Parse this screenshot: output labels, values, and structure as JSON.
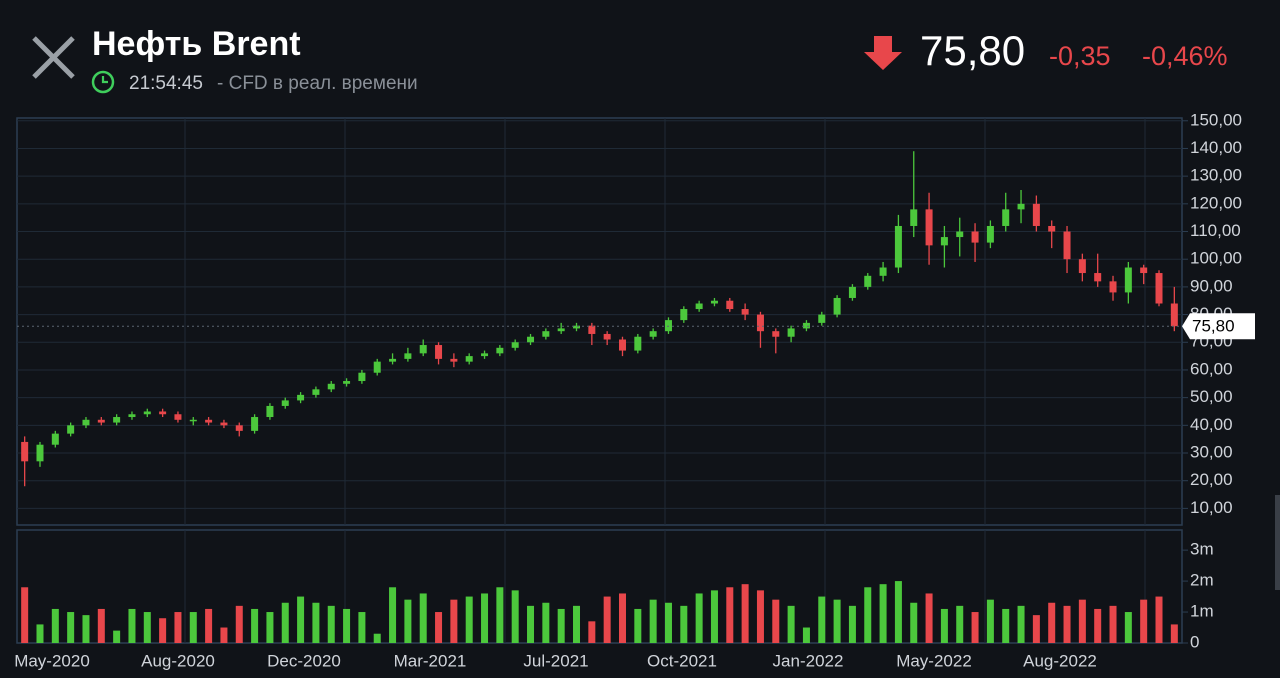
{
  "header": {
    "title": "Нефть Brent",
    "time": "21:54:45",
    "subtitle": "- CFD в реал. времени",
    "price": "75,80",
    "change": "-0,35",
    "change_pct": "-0,46%"
  },
  "chart_data": {
    "type": "candlestick",
    "open": [
      34,
      27,
      33,
      37,
      40,
      42,
      41,
      43,
      44,
      45,
      44,
      42,
      42,
      41,
      40,
      38,
      43,
      47,
      49,
      51,
      53,
      55,
      56,
      59,
      63,
      64,
      66,
      69,
      64,
      63,
      65,
      66,
      68,
      70,
      72,
      74,
      75,
      76,
      73,
      71,
      67,
      72,
      74,
      78,
      82,
      84,
      85,
      82,
      80,
      74,
      72,
      75,
      77,
      80,
      86,
      90,
      94,
      97,
      112,
      118,
      105,
      108,
      110,
      106,
      112,
      118,
      120,
      112,
      110,
      100,
      95,
      92,
      88,
      97,
      95,
      84
    ],
    "high": [
      36,
      34,
      38,
      41,
      43,
      43,
      44,
      45,
      46,
      46,
      45,
      43,
      43,
      42,
      41,
      44,
      48,
      50,
      52,
      54,
      56,
      57,
      60,
      64,
      66,
      68,
      71,
      70,
      66,
      66,
      67,
      69,
      71,
      73,
      75,
      77,
      77,
      77,
      74,
      72,
      73,
      75,
      79,
      83,
      85,
      86,
      86,
      84,
      81,
      75,
      76,
      78,
      81,
      87,
      91,
      95,
      99,
      116,
      139,
      124,
      112,
      115,
      113,
      114,
      124,
      125,
      123,
      114,
      112,
      102,
      102,
      94,
      99,
      98,
      96,
      90
    ],
    "low": [
      18,
      25,
      32,
      36,
      39,
      40,
      40,
      42,
      43,
      43,
      41,
      40,
      40,
      39,
      36,
      37,
      42,
      46,
      48,
      50,
      52,
      54,
      55,
      58,
      62,
      63,
      65,
      62,
      61,
      62,
      64,
      65,
      67,
      69,
      71,
      73,
      74,
      69,
      69,
      65,
      66,
      71,
      73,
      77,
      81,
      83,
      81,
      78,
      68,
      66,
      70,
      74,
      76,
      79,
      85,
      89,
      92,
      95,
      108,
      98,
      97,
      101,
      99,
      104,
      110,
      113,
      110,
      104,
      95,
      92,
      90,
      85,
      84,
      91,
      83,
      74
    ],
    "close": [
      27,
      33,
      37,
      40,
      42,
      41,
      43,
      44,
      45,
      44,
      42,
      42,
      41,
      40,
      38,
      43,
      47,
      49,
      51,
      53,
      55,
      56,
      59,
      63,
      64,
      66,
      69,
      64,
      63,
      65,
      66,
      68,
      70,
      72,
      74,
      75,
      76,
      73,
      71,
      67,
      72,
      74,
      78,
      82,
      84,
      85,
      82,
      80,
      74,
      72,
      75,
      77,
      80,
      86,
      90,
      94,
      97,
      112,
      118,
      105,
      108,
      110,
      106,
      112,
      118,
      120,
      112,
      110,
      100,
      95,
      92,
      88,
      97,
      95,
      84,
      75.8
    ],
    "up_color": "#4cc83c",
    "down_color": "#e8474b",
    "ylim": [
      4,
      151
    ],
    "yticks": [
      {
        "value": 10,
        "label": "10,00"
      },
      {
        "value": 20,
        "label": "20,00"
      },
      {
        "value": 30,
        "label": "30,00"
      },
      {
        "value": 40,
        "label": "40,00"
      },
      {
        "value": 50,
        "label": "50,00"
      },
      {
        "value": 60,
        "label": "60,00"
      },
      {
        "value": 70,
        "label": "70,00"
      },
      {
        "value": 80,
        "label": "80,00"
      },
      {
        "value": 90,
        "label": "90,00"
      },
      {
        "value": 100,
        "label": "100,00"
      },
      {
        "value": 110,
        "label": "110,00"
      },
      {
        "value": 120,
        "label": "120,00"
      },
      {
        "value": 130,
        "label": "130,00"
      },
      {
        "value": 140,
        "label": "140,00"
      },
      {
        "value": 150,
        "label": "150,00"
      }
    ],
    "grid": true,
    "last_price": {
      "value": 75.8,
      "label": "75,80"
    },
    "volume": {
      "values": [
        1.8,
        0.6,
        1.1,
        1.0,
        0.9,
        1.1,
        0.4,
        1.1,
        1.0,
        0.8,
        1.0,
        1.0,
        1.1,
        0.5,
        1.2,
        1.1,
        1.0,
        1.3,
        1.5,
        1.3,
        1.2,
        1.1,
        1.0,
        0.3,
        1.8,
        1.4,
        1.6,
        1.0,
        1.4,
        1.5,
        1.6,
        1.8,
        1.7,
        1.2,
        1.3,
        1.1,
        1.2,
        0.7,
        1.5,
        1.6,
        1.1,
        1.4,
        1.3,
        1.2,
        1.6,
        1.7,
        1.8,
        1.9,
        1.7,
        1.4,
        1.2,
        0.5,
        1.5,
        1.4,
        1.2,
        1.8,
        1.9,
        2.0,
        1.3,
        1.6,
        1.1,
        1.2,
        1.0,
        1.4,
        1.1,
        1.2,
        0.9,
        1.3,
        1.2,
        1.4,
        1.1,
        1.2,
        1.0,
        1.4,
        1.5,
        0.6
      ],
      "ylim": [
        0,
        3.65
      ],
      "yticks": [
        0,
        {
          "value": 1,
          "label": "1m"
        },
        {
          "value": 2,
          "label": "2m"
        },
        {
          "value": 3,
          "label": "3m"
        }
      ]
    },
    "x_labels": [
      "May-2020",
      "Aug-2020",
      "Dec-2020",
      "Mar-2021",
      "Jul-2021",
      "Oct-2021",
      "Jan-2022",
      "May-2022",
      "Aug-2022"
    ]
  }
}
